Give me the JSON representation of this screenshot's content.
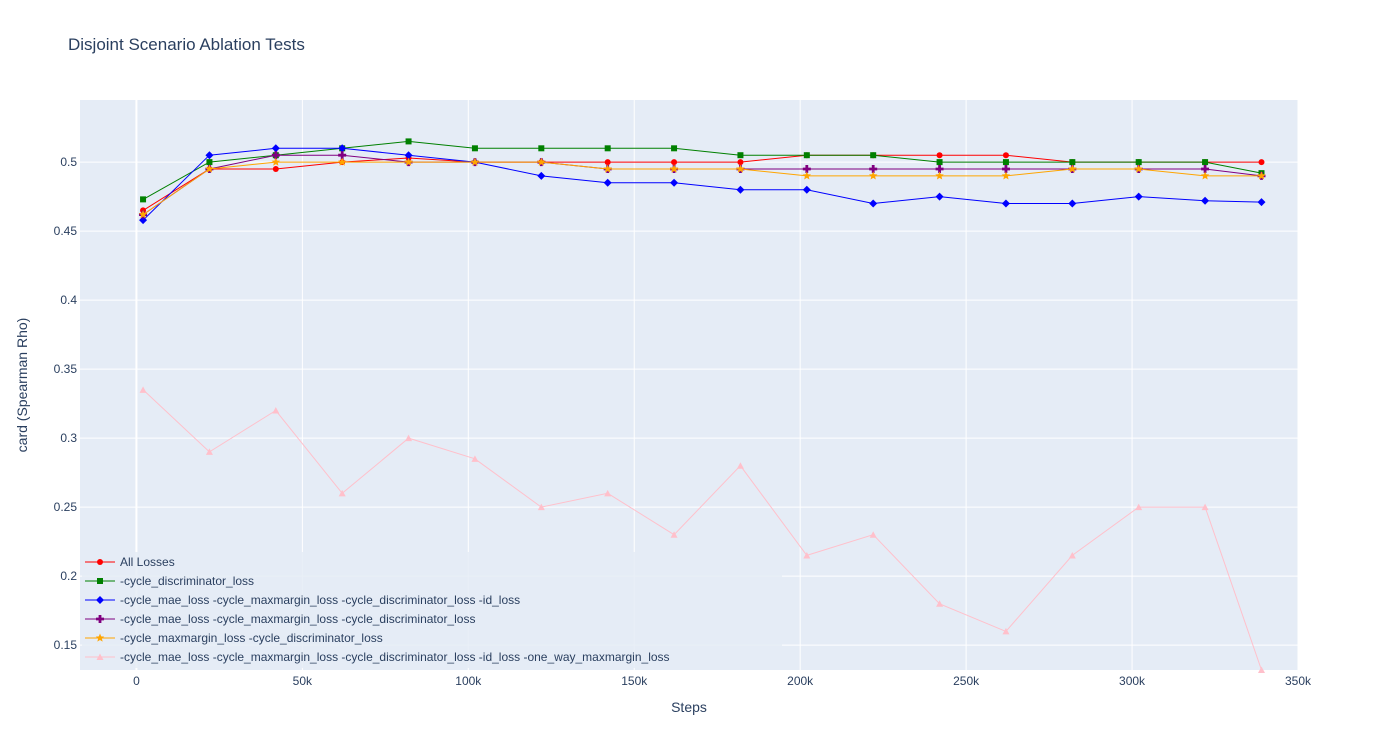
{
  "chart_data": {
    "type": "line",
    "title": "Disjoint Scenario Ablation Tests",
    "xlabel": "Steps",
    "ylabel": "card (Spearman Rho)",
    "xlim": [
      -17000,
      350000
    ],
    "ylim": [
      0.132,
      0.545
    ],
    "grid": true,
    "legend_position": "bottom-left",
    "x_ticks": [
      {
        "value": 0,
        "label": "0"
      },
      {
        "value": 50000,
        "label": "50k"
      },
      {
        "value": 100000,
        "label": "100k"
      },
      {
        "value": 150000,
        "label": "150k"
      },
      {
        "value": 200000,
        "label": "200k"
      },
      {
        "value": 250000,
        "label": "250k"
      },
      {
        "value": 300000,
        "label": "300k"
      },
      {
        "value": 350000,
        "label": "350k"
      }
    ],
    "y_ticks": [
      {
        "value": 0.15,
        "label": "0.15"
      },
      {
        "value": 0.2,
        "label": "0.2"
      },
      {
        "value": 0.25,
        "label": "0.25"
      },
      {
        "value": 0.3,
        "label": "0.3"
      },
      {
        "value": 0.35,
        "label": "0.35"
      },
      {
        "value": 0.4,
        "label": "0.4"
      },
      {
        "value": 0.45,
        "label": "0.45"
      },
      {
        "value": 0.5,
        "label": "0.5"
      }
    ],
    "x": [
      2000,
      22000,
      42000,
      62000,
      82000,
      102000,
      122000,
      142000,
      162000,
      182000,
      202000,
      222000,
      242000,
      262000,
      282000,
      302000,
      322000,
      339000
    ],
    "series": [
      {
        "name": "All Losses",
        "color": "#ff0000",
        "marker": "circle",
        "values": [
          0.465,
          0.495,
          0.495,
          0.5,
          0.503,
          0.5,
          0.5,
          0.5,
          0.5,
          0.5,
          0.505,
          0.505,
          0.505,
          0.505,
          0.5,
          0.5,
          0.5,
          0.5
        ]
      },
      {
        "name": "-cycle_discriminator_loss",
        "color": "#008000",
        "marker": "square",
        "values": [
          0.473,
          0.5,
          0.505,
          0.51,
          0.515,
          0.51,
          0.51,
          0.51,
          0.51,
          0.505,
          0.505,
          0.505,
          0.5,
          0.5,
          0.5,
          0.5,
          0.5,
          0.492
        ]
      },
      {
        "name": "-cycle_mae_loss  -cycle_maxmargin_loss  -cycle_discriminator_loss  -id_loss",
        "color": "#0000ff",
        "marker": "diamond",
        "values": [
          0.458,
          0.505,
          0.51,
          0.51,
          0.505,
          0.5,
          0.49,
          0.485,
          0.485,
          0.48,
          0.48,
          0.47,
          0.475,
          0.47,
          0.47,
          0.475,
          0.472,
          0.471
        ]
      },
      {
        "name": "-cycle_mae_loss  -cycle_maxmargin_loss -cycle_discriminator_loss",
        "color": "#800080",
        "marker": "cross",
        "values": [
          0.462,
          0.495,
          0.505,
          0.505,
          0.5,
          0.5,
          0.5,
          0.495,
          0.495,
          0.495,
          0.495,
          0.495,
          0.495,
          0.495,
          0.495,
          0.495,
          0.495,
          0.49
        ]
      },
      {
        "name": "-cycle_maxmargin_loss -cycle_discriminator_loss",
        "color": "#ffa500",
        "marker": "star",
        "values": [
          0.462,
          0.495,
          0.5,
          0.5,
          0.5,
          0.5,
          0.5,
          0.495,
          0.495,
          0.495,
          0.49,
          0.49,
          0.49,
          0.49,
          0.495,
          0.495,
          0.49,
          0.49
        ]
      },
      {
        "name": "-cycle_mae_loss -cycle_maxmargin_loss -cycle_discriminator_loss -id_loss -one_way_maxmargin_loss",
        "color": "#ffc0cb",
        "marker": "triangle",
        "values": [
          0.335,
          0.29,
          0.32,
          0.26,
          0.3,
          0.285,
          0.25,
          0.26,
          0.23,
          0.28,
          0.215,
          0.23,
          0.18,
          0.16,
          0.215,
          0.25,
          0.25,
          0.132
        ]
      }
    ]
  }
}
